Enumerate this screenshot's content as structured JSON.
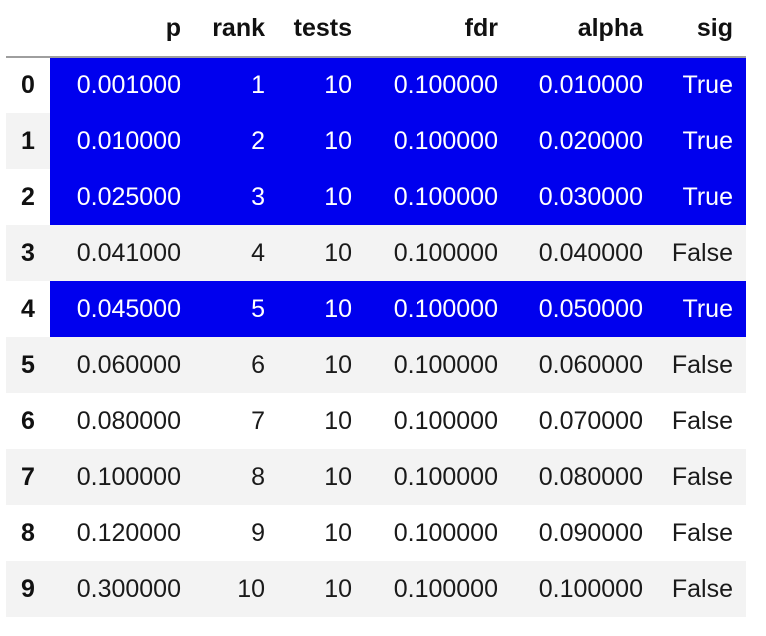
{
  "table": {
    "columns": [
      "p",
      "rank",
      "tests",
      "fdr",
      "alpha",
      "sig"
    ],
    "highlight_color": "#0000ee",
    "rows": [
      {
        "index": "0",
        "p": "0.001000",
        "rank": "1",
        "tests": "10",
        "fdr": "0.100000",
        "alpha": "0.010000",
        "sig": "True",
        "highlighted": true
      },
      {
        "index": "1",
        "p": "0.010000",
        "rank": "2",
        "tests": "10",
        "fdr": "0.100000",
        "alpha": "0.020000",
        "sig": "True",
        "highlighted": true
      },
      {
        "index": "2",
        "p": "0.025000",
        "rank": "3",
        "tests": "10",
        "fdr": "0.100000",
        "alpha": "0.030000",
        "sig": "True",
        "highlighted": true
      },
      {
        "index": "3",
        "p": "0.041000",
        "rank": "4",
        "tests": "10",
        "fdr": "0.100000",
        "alpha": "0.040000",
        "sig": "False",
        "highlighted": false
      },
      {
        "index": "4",
        "p": "0.045000",
        "rank": "5",
        "tests": "10",
        "fdr": "0.100000",
        "alpha": "0.050000",
        "sig": "True",
        "highlighted": true
      },
      {
        "index": "5",
        "p": "0.060000",
        "rank": "6",
        "tests": "10",
        "fdr": "0.100000",
        "alpha": "0.060000",
        "sig": "False",
        "highlighted": false
      },
      {
        "index": "6",
        "p": "0.080000",
        "rank": "7",
        "tests": "10",
        "fdr": "0.100000",
        "alpha": "0.070000",
        "sig": "False",
        "highlighted": false
      },
      {
        "index": "7",
        "p": "0.100000",
        "rank": "8",
        "tests": "10",
        "fdr": "0.100000",
        "alpha": "0.080000",
        "sig": "False",
        "highlighted": false
      },
      {
        "index": "8",
        "p": "0.120000",
        "rank": "9",
        "tests": "10",
        "fdr": "0.100000",
        "alpha": "0.090000",
        "sig": "False",
        "highlighted": false
      },
      {
        "index": "9",
        "p": "0.300000",
        "rank": "10",
        "tests": "10",
        "fdr": "0.100000",
        "alpha": "0.100000",
        "sig": "False",
        "highlighted": false
      }
    ]
  }
}
